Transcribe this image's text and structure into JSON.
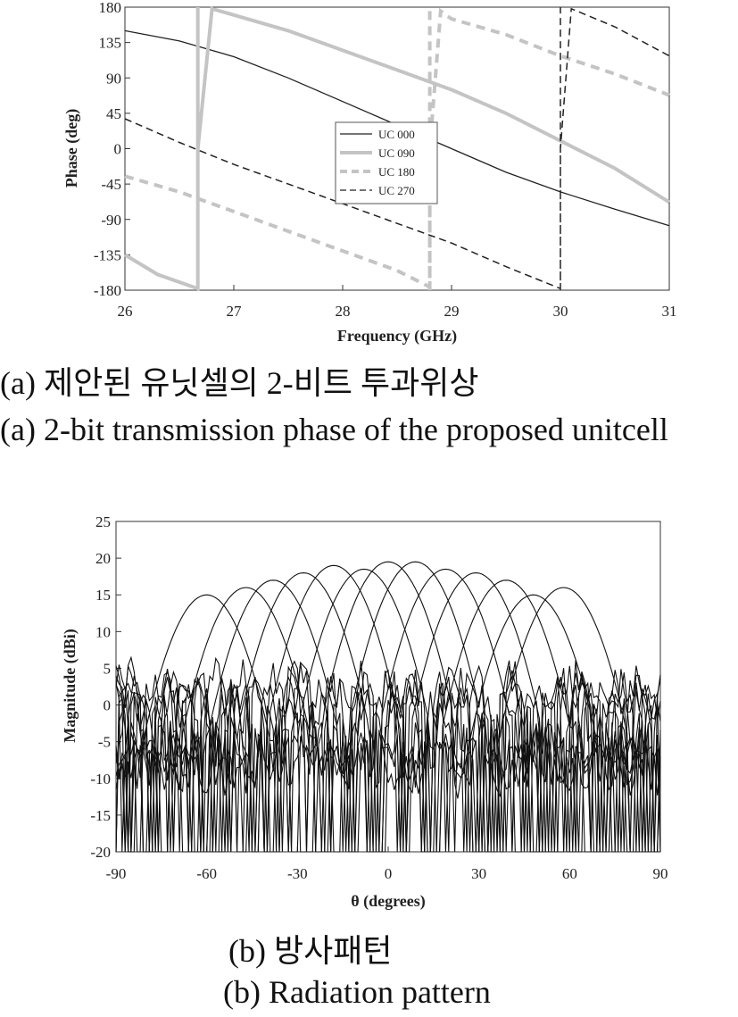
{
  "captions": {
    "a_korean": "(a) 제안된 유닛셀의 2-비트 투과위상",
    "a_english": "(a) 2-bit transmission phase of the proposed unitcell",
    "b_korean": "(b) 방사패턴",
    "b_english": "(b) Radiation pattern"
  },
  "chart_data": [
    {
      "type": "line",
      "title": "",
      "xlabel": "Frequency (GHz)",
      "ylabel": "Phase (deg)",
      "xlim": [
        26,
        31
      ],
      "ylim": [
        -180,
        180
      ],
      "xticks": [
        "26",
        "27",
        "28",
        "29",
        "30",
        "31"
      ],
      "yticks": [
        "180",
        "135",
        "90",
        "45",
        "0",
        "-45",
        "-90",
        "-135",
        "-180"
      ],
      "legend_position": "center",
      "grid": false,
      "series": [
        {
          "name": "UC 000",
          "style": "solid-thin",
          "color": "#222222",
          "x": [
            26,
            26.5,
            27,
            27.5,
            28,
            28.5,
            29,
            29.5,
            30,
            30.5,
            31
          ],
          "y": [
            150,
            137,
            117,
            90,
            60,
            30,
            0,
            -30,
            -55,
            -77,
            -98
          ]
        },
        {
          "name": "UC 090",
          "style": "solid-thick",
          "color": "#c4c4c4",
          "x": [
            26,
            26.3,
            26.67,
            26.67,
            26.8,
            27,
            27.5,
            28,
            28.5,
            29,
            29.5,
            30,
            30.5,
            31
          ],
          "y": [
            -135,
            -160,
            -178,
            0,
            178,
            170,
            150,
            125,
            100,
            75,
            45,
            10,
            -25,
            -68
          ]
        },
        {
          "name": "UC 180",
          "style": "dashed-thick",
          "color": "#c4c4c4",
          "x": [
            26,
            26.5,
            27,
            27.5,
            28,
            28.5,
            28.8,
            28.8,
            28.9,
            29,
            29.5,
            30,
            30.5,
            31
          ],
          "y": [
            -35,
            -55,
            -80,
            -105,
            -130,
            -155,
            -176,
            0,
            175,
            165,
            145,
            118,
            95,
            68
          ]
        },
        {
          "name": "UC 270",
          "style": "dashed-thin",
          "color": "#222222",
          "x": [
            26,
            26.5,
            27,
            27.5,
            28,
            28.5,
            29,
            29.5,
            30,
            30,
            30.1,
            30.5,
            31
          ],
          "y": [
            38,
            8,
            -20,
            -45,
            -70,
            -95,
            -120,
            -150,
            -178,
            0,
            178,
            155,
            118
          ]
        }
      ]
    },
    {
      "type": "line",
      "title": "",
      "xlabel": "θ (degrees)",
      "ylabel": "Magnitude (dBi)",
      "xlim": [
        -90,
        90
      ],
      "ylim": [
        -20,
        25
      ],
      "xticks": [
        "-90",
        "-60",
        "-30",
        "0",
        "30",
        "60",
        "90"
      ],
      "yticks": [
        "25",
        "20",
        "15",
        "10",
        "5",
        "0",
        "-5",
        "-10",
        "-15",
        "-20"
      ],
      "grid": false,
      "legend_position": "none",
      "series_color": "#111111",
      "main_beams": {
        "peak_angles": [
          -60,
          -47,
          -38,
          -28,
          -18,
          -8,
          0,
          9,
          19,
          29,
          39,
          48,
          58
        ],
        "peak_gains": [
          15,
          16,
          17,
          18,
          19,
          18.5,
          19.5,
          19.5,
          18.5,
          18,
          17,
          15,
          16
        ]
      },
      "sidelobe_level": {
        "min": -20,
        "max": 5
      }
    }
  ]
}
